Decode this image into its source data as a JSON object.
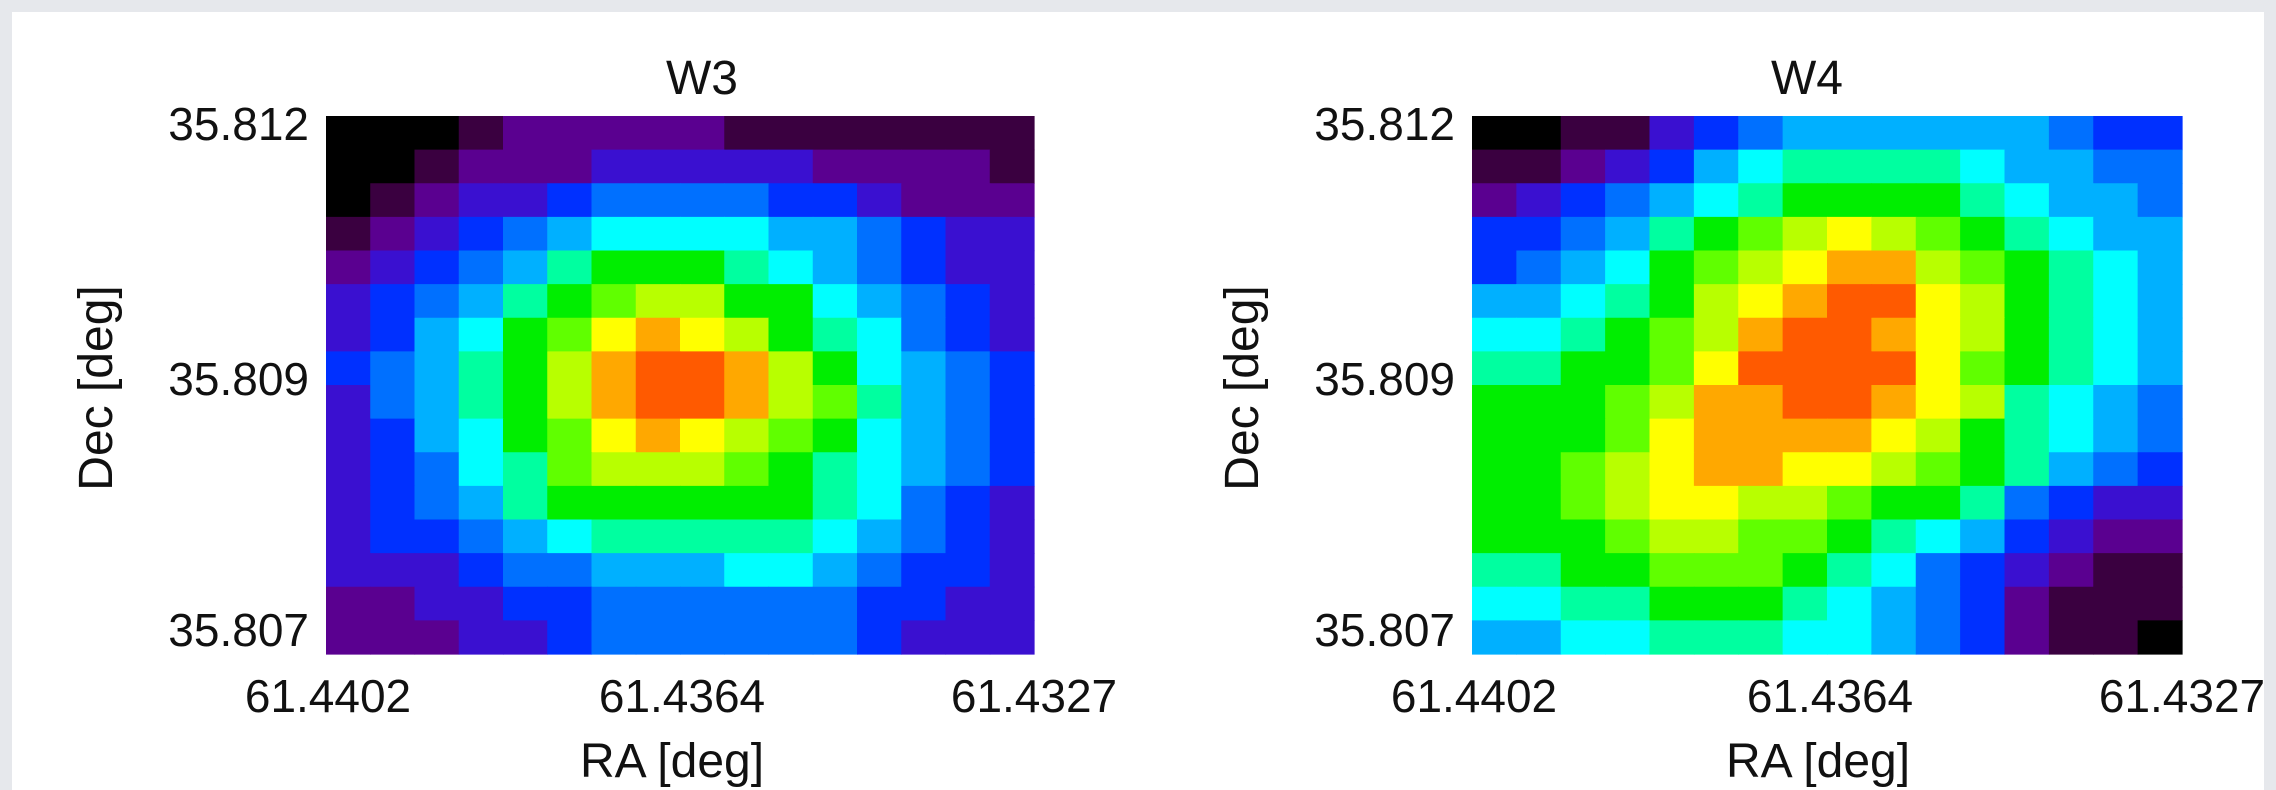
{
  "chart_data": [
    {
      "type": "heatmap",
      "title": "W3",
      "xlabel": "RA [deg]",
      "ylabel": "Dec [deg]",
      "x_tick_labels": [
        "61.4402",
        "61.4364",
        "61.4327"
      ],
      "y_tick_labels": [
        "35.812",
        "35.809",
        "35.807"
      ],
      "xlim": [
        61.4402,
        61.4327
      ],
      "ylim": [
        35.807,
        35.812
      ],
      "colormap": [
        "#000000",
        "#3a0040",
        "#5a0090",
        "#3a10d0",
        "#0030ff",
        "#0070ff",
        "#00b0ff",
        "#00ffff",
        "#00ffa0",
        "#00ee00",
        "#60ff00",
        "#b8ff00",
        "#ffff00",
        "#ffa800",
        "#ff5a00"
      ],
      "grid_rows": 16,
      "grid_cols": 16,
      "values": [
        [
          0,
          0,
          0,
          1,
          2,
          2,
          2,
          2,
          2,
          1,
          1,
          1,
          1,
          1,
          1,
          1
        ],
        [
          0,
          0,
          1,
          2,
          2,
          2,
          3,
          3,
          3,
          3,
          3,
          2,
          2,
          2,
          2,
          1
        ],
        [
          0,
          1,
          2,
          3,
          3,
          4,
          5,
          5,
          5,
          5,
          4,
          4,
          3,
          2,
          2,
          2
        ],
        [
          1,
          2,
          3,
          4,
          5,
          6,
          7,
          7,
          7,
          7,
          6,
          6,
          5,
          4,
          3,
          3
        ],
        [
          2,
          3,
          4,
          5,
          6,
          8,
          9,
          9,
          9,
          8,
          7,
          6,
          5,
          4,
          3,
          3
        ],
        [
          3,
          4,
          5,
          6,
          8,
          9,
          10,
          11,
          11,
          9,
          9,
          7,
          6,
          5,
          4,
          3
        ],
        [
          3,
          4,
          6,
          7,
          9,
          10,
          12,
          13,
          12,
          11,
          9,
          8,
          7,
          5,
          4,
          3
        ],
        [
          4,
          5,
          6,
          8,
          9,
          11,
          13,
          14,
          14,
          13,
          11,
          9,
          7,
          6,
          5,
          4
        ],
        [
          3,
          5,
          6,
          8,
          9,
          11,
          13,
          14,
          14,
          13,
          11,
          10,
          8,
          6,
          5,
          4
        ],
        [
          3,
          4,
          6,
          7,
          9,
          10,
          12,
          13,
          12,
          11,
          10,
          9,
          7,
          6,
          5,
          4
        ],
        [
          3,
          4,
          5,
          7,
          8,
          10,
          11,
          11,
          11,
          10,
          9,
          8,
          7,
          6,
          5,
          4
        ],
        [
          3,
          4,
          5,
          6,
          8,
          9,
          9,
          9,
          9,
          9,
          9,
          8,
          7,
          5,
          4,
          3
        ],
        [
          3,
          4,
          4,
          5,
          6,
          7,
          8,
          8,
          8,
          8,
          8,
          7,
          6,
          5,
          4,
          3
        ],
        [
          3,
          3,
          3,
          4,
          5,
          5,
          6,
          6,
          6,
          7,
          7,
          6,
          5,
          4,
          4,
          3
        ],
        [
          2,
          2,
          3,
          3,
          4,
          4,
          5,
          5,
          5,
          5,
          5,
          5,
          4,
          4,
          3,
          3
        ],
        [
          2,
          2,
          2,
          3,
          3,
          4,
          5,
          5,
          5,
          5,
          5,
          5,
          4,
          3,
          3,
          3
        ]
      ]
    },
    {
      "type": "heatmap",
      "title": "W4",
      "xlabel": "RA [deg]",
      "ylabel": "Dec [deg]",
      "x_tick_labels": [
        "61.4402",
        "61.4364",
        "61.4327"
      ],
      "y_tick_labels": [
        "35.812",
        "35.809",
        "35.807"
      ],
      "xlim": [
        61.4402,
        61.4327
      ],
      "ylim": [
        35.807,
        35.812
      ],
      "colormap": [
        "#000000",
        "#3a0040",
        "#5a0090",
        "#3a10d0",
        "#0030ff",
        "#0070ff",
        "#00b0ff",
        "#00ffff",
        "#00ffa0",
        "#00ee00",
        "#60ff00",
        "#b8ff00",
        "#ffff00",
        "#ffa800",
        "#ff5a00"
      ],
      "grid_rows": 16,
      "grid_cols": 16,
      "values": [
        [
          0,
          0,
          1,
          1,
          3,
          4,
          5,
          6,
          6,
          6,
          6,
          6,
          6,
          5,
          4,
          4
        ],
        [
          1,
          1,
          2,
          3,
          4,
          6,
          7,
          8,
          8,
          8,
          8,
          7,
          6,
          6,
          5,
          5
        ],
        [
          2,
          3,
          4,
          5,
          6,
          7,
          8,
          9,
          9,
          9,
          9,
          8,
          7,
          6,
          6,
          5
        ],
        [
          4,
          4,
          5,
          6,
          8,
          9,
          10,
          11,
          12,
          11,
          10,
          9,
          8,
          7,
          6,
          6
        ],
        [
          4,
          5,
          6,
          7,
          9,
          10,
          11,
          12,
          13,
          13,
          11,
          10,
          9,
          8,
          7,
          6
        ],
        [
          6,
          6,
          7,
          8,
          9,
          11,
          12,
          13,
          14,
          14,
          12,
          11,
          9,
          8,
          7,
          6
        ],
        [
          7,
          7,
          8,
          9,
          10,
          11,
          13,
          14,
          14,
          13,
          12,
          11,
          9,
          8,
          7,
          6
        ],
        [
          8,
          8,
          9,
          9,
          10,
          12,
          14,
          14,
          14,
          14,
          12,
          10,
          9,
          8,
          7,
          6
        ],
        [
          9,
          9,
          9,
          10,
          11,
          13,
          13,
          14,
          14,
          13,
          12,
          11,
          8,
          7,
          6,
          5
        ],
        [
          9,
          9,
          9,
          10,
          12,
          13,
          13,
          13,
          13,
          12,
          11,
          9,
          8,
          7,
          6,
          5
        ],
        [
          9,
          9,
          10,
          11,
          12,
          13,
          13,
          12,
          12,
          11,
          10,
          9,
          8,
          6,
          5,
          4
        ],
        [
          9,
          9,
          10,
          11,
          12,
          12,
          11,
          11,
          10,
          9,
          9,
          8,
          5,
          4,
          3,
          3
        ],
        [
          9,
          9,
          9,
          10,
          11,
          11,
          10,
          10,
          9,
          8,
          7,
          6,
          4,
          3,
          2,
          2
        ],
        [
          8,
          8,
          9,
          9,
          10,
          10,
          10,
          9,
          8,
          7,
          5,
          4,
          3,
          2,
          1,
          1
        ],
        [
          7,
          7,
          8,
          8,
          9,
          9,
          9,
          8,
          7,
          6,
          5,
          4,
          2,
          1,
          1,
          1
        ],
        [
          6,
          6,
          7,
          7,
          8,
          8,
          8,
          7,
          7,
          6,
          5,
          4,
          2,
          1,
          1,
          0
        ]
      ]
    }
  ]
}
